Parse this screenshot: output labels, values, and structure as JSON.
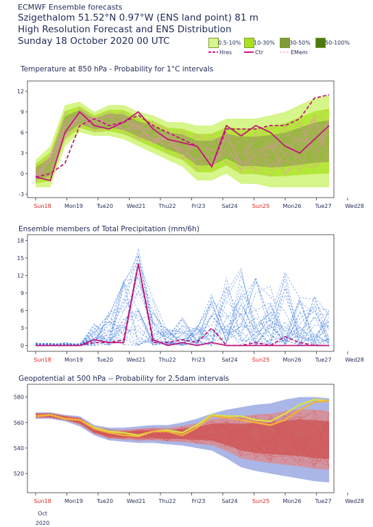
{
  "header": {
    "source": "ECMWF Ensemble forecasts",
    "location": "Szigethalom 51.52°N 0.97°W (ENS land point) 81 m",
    "subtitle": "High Resolution Forecast and ENS Distribution",
    "date": "Sunday 18 October 2020 00 UTC"
  },
  "legend": {
    "bins": [
      {
        "label": "0.5-10%",
        "color": "#d6f58a"
      },
      {
        "label": "10-30%",
        "color": "#a8e21c"
      },
      {
        "label": "30-50%",
        "color": "#7f9b3c"
      },
      {
        "label": "50-100%",
        "color": "#4b7a10"
      }
    ],
    "lines": [
      {
        "label": "Hres",
        "color": "#d0128a",
        "style": "dashed"
      },
      {
        "label": "Ctr",
        "color": "#d0128a",
        "style": "solid"
      },
      {
        "label": "EMem",
        "color": "#f08ac8",
        "style": "dashed"
      }
    ]
  },
  "x_ticks": [
    "Sun18",
    "Mon19",
    "Tue20",
    "Wed21",
    "Thu22",
    "Fri23",
    "Sat24",
    "Sun25",
    "Mon26",
    "Tue27",
    "Wed28"
  ],
  "x_tick_colors": [
    "#e0201c",
    "#1f2a57",
    "#1f2a57",
    "#1f2a57",
    "#1f2a57",
    "#1f2a57",
    "#1f2a57",
    "#e0201c",
    "#1f2a57",
    "#1f2a57",
    "#1f2a57"
  ],
  "x_sub": {
    "month": "Oct",
    "year": "2020"
  },
  "chart_data": [
    {
      "type": "area",
      "title": "Temperature at 850 hPa - Probability for 1°C intervals",
      "x": [
        0,
        0.5,
        1,
        1.5,
        2,
        2.5,
        3,
        3.5,
        4,
        4.5,
        5,
        5.5,
        6,
        6.5,
        7,
        7.5,
        8,
        8.5,
        9,
        9.5,
        10
      ],
      "ylim": [
        -3.5,
        13.5
      ],
      "yticks": [
        -3,
        0,
        3,
        6,
        9,
        12
      ],
      "envelope_lo": [
        -2,
        -2,
        4,
        6,
        5.5,
        5.5,
        5,
        4,
        3,
        2,
        1,
        -1,
        -1,
        0,
        -1.5,
        -1.5,
        -2,
        -2,
        -2,
        -2,
        -2
      ],
      "envelope_hi": [
        2,
        4,
        10,
        10.5,
        9,
        10,
        10,
        9,
        8.5,
        7.5,
        7.5,
        7,
        7,
        8,
        8,
        8,
        8.5,
        9,
        10,
        11,
        11.5
      ],
      "series": [
        {
          "name": "Hres",
          "values": [
            -0.5,
            0,
            1.5,
            7,
            8,
            7,
            7.5,
            8.5,
            7,
            6,
            5,
            4,
            1,
            6.5,
            6.5,
            6.5,
            7,
            7,
            8,
            11,
            11.5
          ]
        },
        {
          "name": "Ctr",
          "values": [
            -0.5,
            -1,
            6,
            9,
            7,
            6.5,
            7.5,
            9,
            6.5,
            5,
            4.5,
            4,
            1,
            7,
            5.5,
            7,
            6,
            4,
            3,
            5,
            7
          ]
        }
      ]
    },
    {
      "type": "line",
      "title": "Ensemble members of Total Precipitation (mm/6h)",
      "x": [
        0,
        0.5,
        1,
        1.5,
        2,
        2.5,
        3,
        3.5,
        4,
        4.5,
        5,
        5.5,
        6,
        6.5,
        7,
        7.5,
        8,
        8.5,
        9,
        9.5,
        10
      ],
      "ylim": [
        -1,
        19
      ],
      "yticks": [
        0,
        3,
        6,
        9,
        12,
        15,
        18
      ],
      "series": [
        {
          "name": "Hres",
          "values": [
            0,
            0,
            0,
            0,
            0.5,
            0.5,
            1,
            14,
            0.5,
            0.5,
            1,
            0.5,
            3,
            0,
            0,
            0.5,
            0,
            1.5,
            0.5,
            0,
            0
          ]
        },
        {
          "name": "Ctr",
          "values": [
            0,
            0,
            0,
            0,
            1,
            0.5,
            0.5,
            14,
            1,
            0,
            0.5,
            0,
            0.5,
            0,
            0,
            0,
            0,
            0,
            0,
            0,
            0
          ]
        }
      ],
      "members_max": [
        0.5,
        0.5,
        0.5,
        0.5,
        4,
        6,
        12,
        17,
        9,
        3,
        5,
        4,
        9,
        12,
        14,
        12,
        11,
        13,
        10,
        9,
        7
      ]
    },
    {
      "type": "area",
      "title": "Geopotential at 500 hPa -- Probability for 2.5dam intervals",
      "x": [
        0,
        0.5,
        1,
        1.5,
        2,
        2.5,
        3,
        3.5,
        4,
        4.5,
        5,
        5.5,
        6,
        6.5,
        7,
        7.5,
        8,
        8.5,
        9,
        9.5,
        10
      ],
      "ylim": [
        505,
        590
      ],
      "yticks": [
        520,
        540,
        560,
        580
      ],
      "envelope_lo": [
        563,
        563,
        561,
        557,
        550,
        546,
        545,
        544,
        544,
        543,
        542,
        540,
        538,
        532,
        525,
        522,
        520,
        518,
        516,
        514,
        513
      ],
      "envelope_hi": [
        568,
        568,
        566,
        565,
        558,
        556,
        556,
        557,
        558,
        558,
        560,
        563,
        567,
        570,
        572,
        574,
        575,
        578,
        580,
        580,
        579
      ],
      "series": [
        {
          "name": "Hres",
          "values": [
            565,
            566,
            563,
            562,
            556,
            553,
            552,
            550,
            553,
            554,
            552,
            558,
            566,
            565,
            565,
            562,
            561,
            567,
            574,
            578,
            577
          ]
        },
        {
          "name": "Ctr",
          "values": [
            565,
            566,
            563,
            562,
            555,
            552,
            550,
            549,
            553,
            553,
            550,
            556,
            565,
            564,
            562,
            560,
            558,
            562,
            570,
            576,
            577
          ]
        }
      ]
    }
  ]
}
